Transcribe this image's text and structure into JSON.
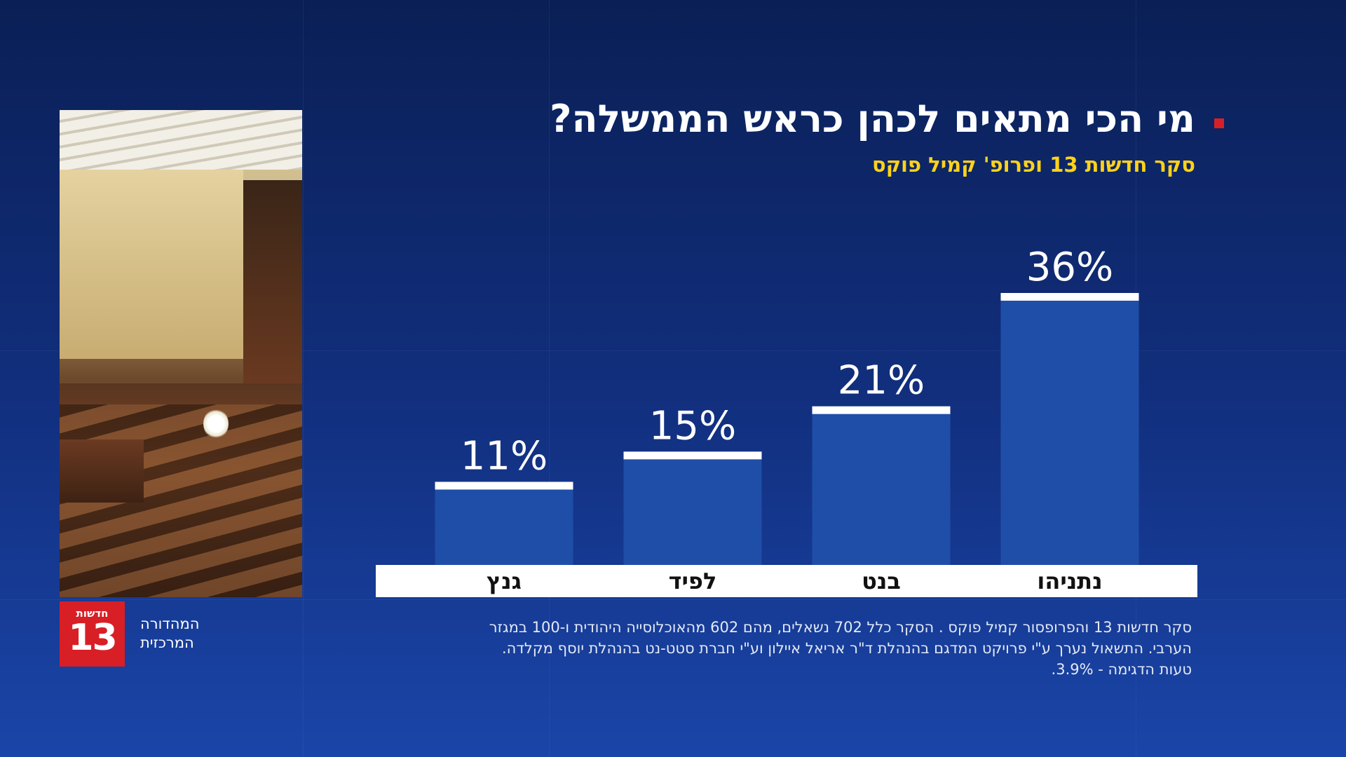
{
  "title": "מי הכי מתאים לכהן כראש הממשלה?",
  "subtitle": "סקר חדשות 13 ופרופ' קמיל פוקס",
  "channel": {
    "logo_top": "חדשות",
    "logo_number": "13",
    "name_line1": "המהדורה",
    "name_line2": "המרכזית"
  },
  "colors": {
    "accent": "#d81f26",
    "subtitle": "#ffd21a",
    "bar": "#1f4ea8",
    "bar_cap": "#ffffff"
  },
  "chart_data": {
    "type": "bar",
    "title": "מי הכי מתאים לכהן כראש הממשלה?",
    "categories": [
      "נתניהו",
      "בנט",
      "לפיד",
      "גנץ"
    ],
    "values": [
      36,
      21,
      15,
      11
    ],
    "value_labels": [
      "36%",
      "21%",
      "15%",
      "11%"
    ],
    "unit": "%",
    "ylim": [
      0,
      40
    ],
    "xlabel": "",
    "ylabel": "",
    "grid": false,
    "legend": "none"
  },
  "footnote": {
    "line1": "סקר חדשות 13 והפרופסור קמיל פוקס . הסקר כלל 702 נשאלים, מהם 602 מהאוכלוסייה היהודית ו-100 במגזר",
    "line2": "הערבי. התשאול נערך ע\"י פרויקט המדגם בהנהלת ד\"ר אריאל איילון וע\"י חברת סטט-נט בהנהלת יוסף מקלדה.",
    "line3": "טעות הדגימה - 3.9%."
  }
}
